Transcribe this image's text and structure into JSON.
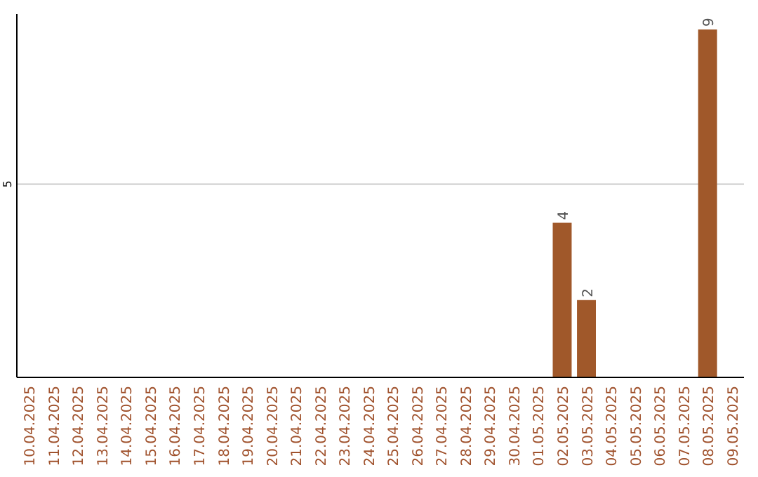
{
  "chart_data": {
    "type": "bar",
    "categories": [
      "10.04.2025",
      "11.04.2025",
      "12.04.2025",
      "13.04.2025",
      "14.04.2025",
      "15.04.2025",
      "16.04.2025",
      "17.04.2025",
      "18.04.2025",
      "19.04.2025",
      "20.04.2025",
      "21.04.2025",
      "22.04.2025",
      "23.04.2025",
      "24.04.2025",
      "25.04.2025",
      "26.04.2025",
      "27.04.2025",
      "28.04.2025",
      "29.04.2025",
      "30.04.2025",
      "01.05.2025",
      "02.05.2025",
      "03.05.2025",
      "04.05.2025",
      "05.05.2025",
      "06.05.2025",
      "07.05.2025",
      "08.05.2025",
      "09.05.2025"
    ],
    "values": [
      null,
      null,
      null,
      null,
      null,
      null,
      null,
      null,
      null,
      null,
      null,
      null,
      null,
      null,
      null,
      null,
      null,
      null,
      null,
      null,
      null,
      null,
      4,
      2,
      null,
      null,
      null,
      null,
      9,
      null
    ],
    "color": "#a0582a",
    "ylim": [
      0,
      9.4
    ],
    "yticks": [
      5
    ],
    "grid": "y",
    "data_labels": true
  }
}
